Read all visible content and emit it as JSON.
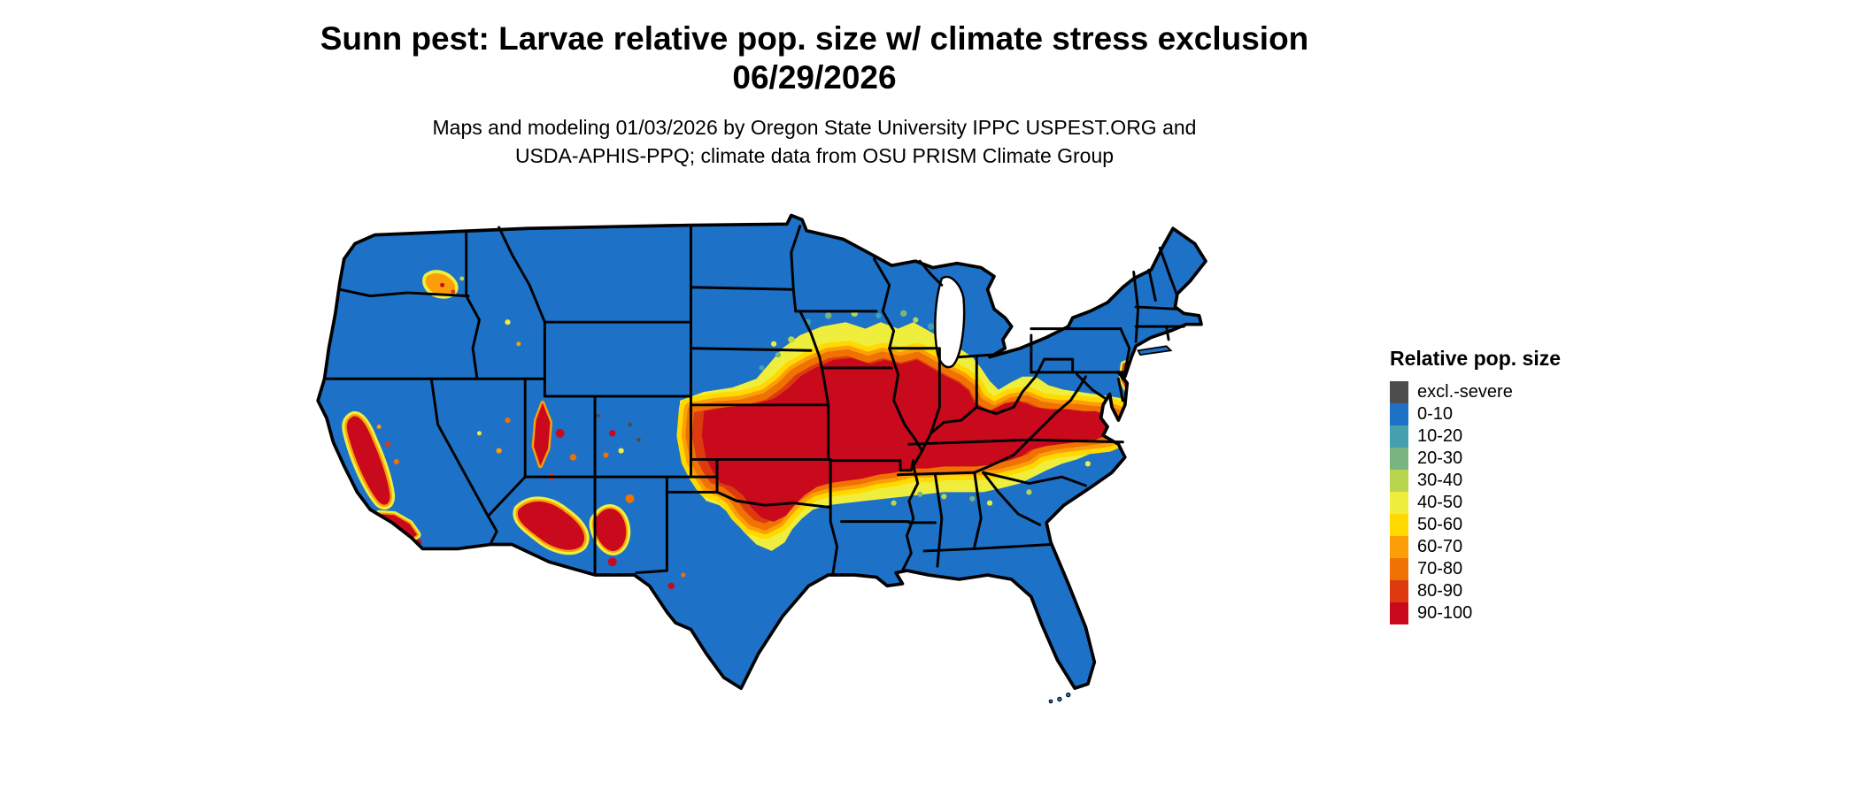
{
  "title": {
    "line1": "Sunn pest: Larvae relative pop. size w/ climate stress exclusion",
    "line2": "06/29/2026"
  },
  "subtitle": {
    "line1": "Maps and modeling 01/03/2026 by Oregon State University IPPC USPEST.ORG and",
    "line2": "USDA-APHIS-PPQ; climate data from OSU PRISM Climate Group"
  },
  "legend": {
    "title": "Relative pop. size",
    "entries": [
      {
        "label": "excl.-severe",
        "color": "#4d4d4d"
      },
      {
        "label": "0-10",
        "color": "#1d72c8"
      },
      {
        "label": "10-20",
        "color": "#45a0ad"
      },
      {
        "label": "20-30",
        "color": "#7ab57f"
      },
      {
        "label": "30-40",
        "color": "#b9d44d"
      },
      {
        "label": "40-50",
        "color": "#f0ee3d"
      },
      {
        "label": "50-60",
        "color": "#ffd900"
      },
      {
        "label": "60-70",
        "color": "#fb9e07"
      },
      {
        "label": "70-80",
        "color": "#ef7203"
      },
      {
        "label": "80-90",
        "color": "#dd3a10"
      },
      {
        "label": "90-100",
        "color": "#c9091c"
      }
    ]
  },
  "map": {
    "region": "Contiguous United States",
    "data_layer": "Relative pop. size (raster, colored by legend classes)"
  }
}
